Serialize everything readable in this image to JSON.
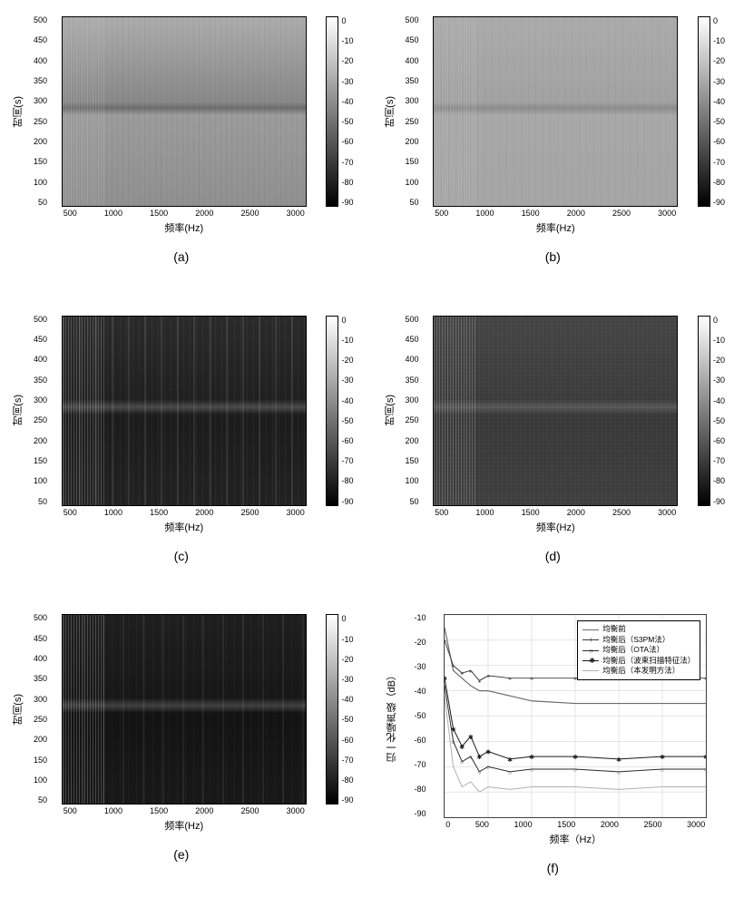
{
  "common": {
    "xlabel": "频率(Hz)",
    "xlabel_f": "频率（Hz）",
    "ylabel_time": "时间(s)",
    "ylabel_f": "归一化噪声级（dB）",
    "x_min": 0,
    "x_max": 3000,
    "x_ticks_spec": [
      "500",
      "1000",
      "1500",
      "2000",
      "2500",
      "3000"
    ],
    "y_ticks_time": [
      "50",
      "100",
      "150",
      "200",
      "250",
      "300",
      "350",
      "400",
      "450",
      "500"
    ],
    "cbar_min": -90,
    "cbar_max": 0,
    "cbar_ticks": [
      "0",
      "-10",
      "-20",
      "-30",
      "-40",
      "-50",
      "-60",
      "-70",
      "-80",
      "-90"
    ],
    "colormap": "grayscale",
    "background_color": "#ffffff",
    "axis_color": "#000000",
    "tick_fontsize": 9,
    "label_fontsize": 11,
    "sublabel_fontsize": 14
  },
  "panels": {
    "a": {
      "sublabel": "(a)",
      "type": "spectrogram",
      "mean_level_db": -35,
      "dark_band_at_s": 260,
      "texture": "light-noisy",
      "bg_hex": "#9a9a9a"
    },
    "b": {
      "sublabel": "(b)",
      "type": "spectrogram",
      "mean_level_db": -30,
      "dark_band_at_s": 260,
      "texture": "light-smooth",
      "bg_hex": "#a8a8a8"
    },
    "c": {
      "sublabel": "(c)",
      "type": "spectrogram",
      "mean_level_db": -70,
      "dark_band_at_s": 260,
      "texture": "dark-striped",
      "bg_hex": "#1a1a1a"
    },
    "d": {
      "sublabel": "(d)",
      "type": "spectrogram",
      "mean_level_db": -55,
      "dark_band_at_s": 260,
      "texture": "dark-grainy",
      "bg_hex": "#3a3a3a"
    },
    "e": {
      "sublabel": "(e)",
      "type": "spectrogram",
      "mean_level_db": -75,
      "dark_band_at_s": 260,
      "texture": "very-dark-striped",
      "bg_hex": "#121212"
    },
    "f": {
      "sublabel": "(f)",
      "type": "line",
      "xlim": [
        0,
        3000
      ],
      "ylim": [
        -90,
        -10
      ],
      "x_ticks": [
        "0",
        "500",
        "1000",
        "1500",
        "2000",
        "2500",
        "3000"
      ],
      "y_ticks": [
        "-10",
        "-20",
        "-30",
        "-40",
        "-50",
        "-60",
        "-70",
        "-80",
        "-90"
      ],
      "grid_color": "#cccccc",
      "series": [
        {
          "name": "均衡前",
          "marker": "none",
          "color": "#6b6b6b",
          "linewidth": 1.2,
          "x": [
            0,
            100,
            200,
            300,
            400,
            500,
            750,
            1000,
            1500,
            2000,
            2500,
            3000
          ],
          "y": [
            -15,
            -32,
            -35,
            -38,
            -40,
            -40,
            -42,
            -44,
            -45,
            -45,
            -45,
            -45
          ]
        },
        {
          "name": "均衡后（S3PM法）",
          "marker": "+",
          "color": "#3a3a3a",
          "linewidth": 1,
          "x": [
            0,
            100,
            200,
            300,
            400,
            500,
            750,
            1000,
            1500,
            2000,
            2500,
            3000
          ],
          "y": [
            -20,
            -30,
            -33,
            -32,
            -36,
            -34,
            -35,
            -35,
            -35,
            -35,
            -35,
            -35
          ]
        },
        {
          "name": "均衡后（OTA法）",
          "marker": "o",
          "color": "#2a2a2a",
          "linewidth": 1,
          "x": [
            0,
            100,
            200,
            300,
            400,
            500,
            750,
            1000,
            1500,
            2000,
            2500,
            3000
          ],
          "y": [
            -38,
            -60,
            -68,
            -66,
            -72,
            -70,
            -72,
            -71,
            -71,
            -72,
            -71,
            -71
          ]
        },
        {
          "name": "均衡后（波束扫描特征法）",
          "marker": "*",
          "color": "#1a1a1a",
          "linewidth": 1,
          "x": [
            0,
            100,
            200,
            300,
            400,
            500,
            750,
            1000,
            1500,
            2000,
            2500,
            3000
          ],
          "y": [
            -35,
            -55,
            -62,
            -58,
            -66,
            -64,
            -67,
            -66,
            -66,
            -67,
            -66,
            -66
          ]
        },
        {
          "name": "均衡后（本发明方法）",
          "marker": "none",
          "color": "#b0b0b0",
          "linewidth": 1,
          "x": [
            0,
            100,
            200,
            300,
            400,
            500,
            750,
            1000,
            1500,
            2000,
            2500,
            3000
          ],
          "y": [
            -42,
            -70,
            -78,
            -76,
            -80,
            -78,
            -79,
            -78,
            -78,
            -79,
            -78,
            -78
          ]
        }
      ]
    }
  }
}
